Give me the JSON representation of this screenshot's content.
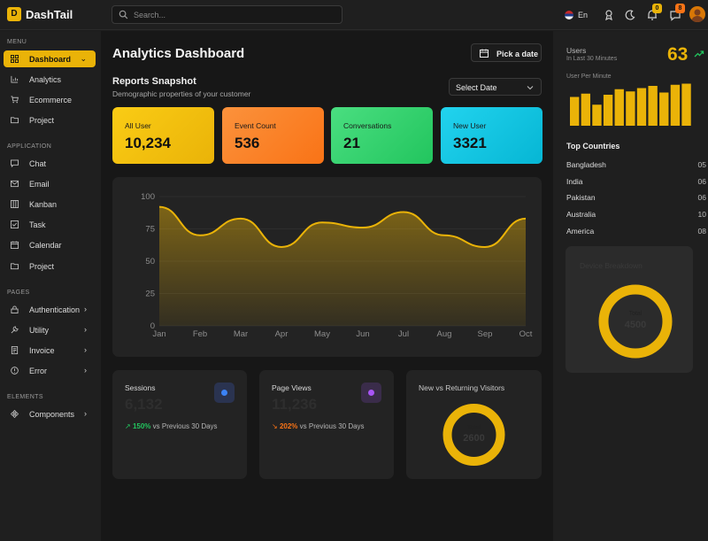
{
  "app": {
    "logo_letter": "D",
    "name": "DashTail"
  },
  "header": {
    "search_placeholder": "Search...",
    "language": "En",
    "notifications_count": "0",
    "messages_count": "8"
  },
  "sidebar": {
    "menu_title": "MENU",
    "menu_items": [
      {
        "label": "Dashboard",
        "active": true
      },
      {
        "label": "Analytics"
      },
      {
        "label": "Ecommerce"
      },
      {
        "label": "Project"
      }
    ],
    "application_title": "APPLICATION",
    "application_items": [
      {
        "label": "Chat"
      },
      {
        "label": "Email"
      },
      {
        "label": "Kanban"
      },
      {
        "label": "Task"
      },
      {
        "label": "Calendar"
      },
      {
        "label": "Project"
      }
    ],
    "pages_title": "PAGES",
    "pages_items": [
      {
        "label": "Authentication"
      },
      {
        "label": "Utility"
      },
      {
        "label": "Invoice"
      },
      {
        "label": "Error"
      }
    ],
    "elements_title": "ELEMENTS",
    "elements_items": [
      {
        "label": "Components"
      }
    ]
  },
  "main": {
    "title": "Analytics Dashboard",
    "date_button": "Pick a date",
    "reports_title": "Reports Snapshot",
    "reports_subtitle": "Demographic properties of your customer",
    "select_date": "Select Date",
    "stats": [
      {
        "label": "All User",
        "value": "10,234",
        "color": "#eab308"
      },
      {
        "label": "Event Count",
        "value": "536",
        "color": "#f97316"
      },
      {
        "label": "Conversations",
        "value": "21",
        "color": "#22c55e"
      },
      {
        "label": "New User",
        "value": "3321",
        "color": "#06b6d4"
      }
    ],
    "bottom": [
      {
        "label": "Sessions",
        "value": "6,132",
        "pct": "150%",
        "compare": "vs Previous 30 Days",
        "trend_color": "#22c55e",
        "dot_color": "#3b82f6",
        "icon_bg": "#2a3350"
      },
      {
        "label": "Page Views",
        "value": "11,236",
        "pct": "202%",
        "compare": "vs Previous 30 Days",
        "trend_color": "#f97316",
        "dot_color": "#a855f7",
        "icon_bg": "#3a2c4a"
      }
    ],
    "visitors": {
      "title": "New vs Returning Visitors",
      "total_label": "Total",
      "total": "2600"
    }
  },
  "chart_data": [
    {
      "type": "area",
      "categories": [
        "Jan",
        "Feb",
        "Mar",
        "Apr",
        "May",
        "Jun",
        "Jul",
        "Aug",
        "Sep",
        "Oct"
      ],
      "series": [
        {
          "name": "Reports",
          "values": [
            92,
            70,
            83,
            61,
            80,
            76,
            88,
            70,
            61,
            83
          ]
        }
      ],
      "yticks": [
        0,
        25,
        50,
        75,
        100
      ],
      "ylim": [
        0,
        100
      ],
      "color": "#eab308"
    },
    {
      "type": "bar",
      "title": "User Per Minute",
      "values": [
        52,
        58,
        38,
        56,
        66,
        62,
        68,
        72,
        60,
        74,
        76
      ],
      "ylim": [
        0,
        80
      ],
      "color": "#eab308"
    }
  ],
  "right": {
    "users_label": "Users",
    "users_sub": "In Last 30 Minutes",
    "users_value": "63",
    "per_minute_label": "User Per Minute",
    "top_countries_title": "Top Countries",
    "countries": [
      {
        "name": "Bangladesh",
        "value": "05"
      },
      {
        "name": "India",
        "value": "06"
      },
      {
        "name": "Pakistan",
        "value": "06"
      },
      {
        "name": "Australia",
        "value": "10"
      },
      {
        "name": "America",
        "value": "08"
      }
    ],
    "device": {
      "title": "Device Breakdown",
      "total_label": "Total",
      "total": "4500"
    }
  },
  "colors": {
    "accent": "#eab308",
    "positive": "#22c55e",
    "negative": "#f97316"
  }
}
